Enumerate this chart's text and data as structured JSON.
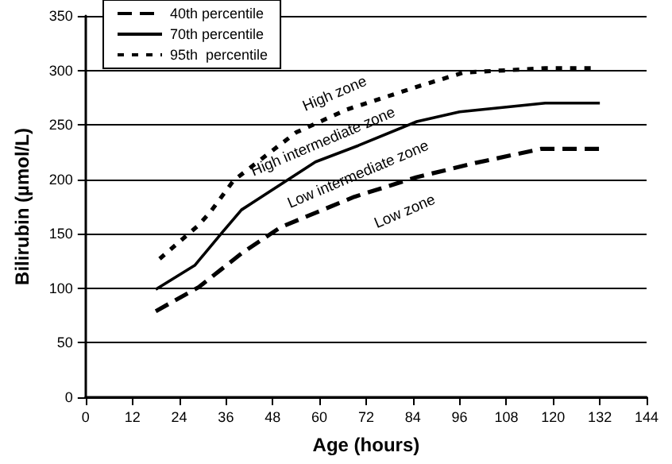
{
  "chart_data": {
    "type": "line",
    "xlabel": "Age (hours)",
    "ylabel": "Bilirubin (µmol/L)",
    "xlim": [
      0,
      144
    ],
    "xticks": [
      0,
      12,
      24,
      36,
      48,
      60,
      72,
      84,
      96,
      108,
      120,
      132,
      144
    ],
    "ylim": [
      0,
      350
    ],
    "yticks": [
      0,
      50,
      100,
      150,
      200,
      250,
      300,
      350
    ],
    "grid": "y",
    "legend": "top left",
    "marker": "none",
    "series": [
      {
        "name": "40th percentile",
        "color": "#000000",
        "line_style": "dashed",
        "x": [
          18,
          29,
          40,
          50,
          69,
          85,
          100,
          117,
          132
        ],
        "values": [
          79,
          101,
          132,
          156,
          184,
          202,
          215,
          228,
          228
        ]
      },
      {
        "name": "70th percentile",
        "color": "#000000",
        "line_style": "solid",
        "x": [
          18,
          28,
          35,
          40,
          59,
          70,
          85,
          96,
          118,
          132
        ],
        "values": [
          99,
          121,
          151,
          172,
          216,
          231,
          253,
          262,
          270,
          270
        ]
      },
      {
        "name": "95th  percentile",
        "color": "#000000",
        "line_style": "dotted",
        "x": [
          19,
          29,
          32,
          38,
          54,
          67,
          86,
          97,
          118,
          131
        ],
        "values": [
          127,
          158,
          170,
          199,
          243,
          264,
          286,
          298,
          302,
          302
        ]
      }
    ],
    "annotations": [
      "High zone",
      "High intermediate zone",
      "Low intermediate zone",
      "Low zone"
    ]
  }
}
